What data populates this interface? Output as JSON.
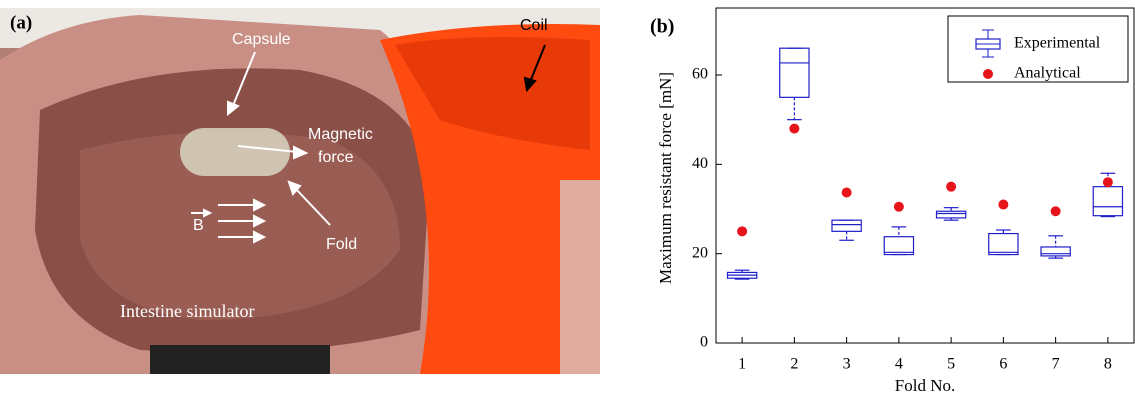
{
  "panel_a": {
    "label": "(a)",
    "capsule": "Capsule",
    "magnetic_force": [
      "Magnetic",
      "force"
    ],
    "coil": "Coil",
    "field": "B",
    "fold": "Fold",
    "simulator": "Intestine simulator"
  },
  "chart_data": {
    "type": "box",
    "panel_label": "(b)",
    "y_label": "Maximum resistant force [mN]",
    "x_label": "Fold No.",
    "categories": [
      "1",
      "2",
      "3",
      "4",
      "5",
      "6",
      "7",
      "8"
    ],
    "series": [
      {
        "name": "Experimental",
        "color": "#1f1fcc",
        "boxes": [
          {
            "min": 14.3,
            "q1": 14.5,
            "median": 15.2,
            "q3": 15.8,
            "max": 16.3
          },
          {
            "min": 50,
            "q1": 55,
            "median": 62.7,
            "q3": 66,
            "max": 66
          },
          {
            "min": 23,
            "q1": 25,
            "median": 26.5,
            "q3": 27.5,
            "max": 27.5
          },
          {
            "min": 19.8,
            "q1": 19.8,
            "median": 20.3,
            "q3": 23.8,
            "max": 26
          },
          {
            "min": 27.5,
            "q1": 28,
            "median": 29,
            "q3": 29.5,
            "max": 30.3
          },
          {
            "min": 19.8,
            "q1": 19.8,
            "median": 20.3,
            "q3": 24.5,
            "max": 25.3
          },
          {
            "min": 19,
            "q1": 19.5,
            "median": 20,
            "q3": 21.5,
            "max": 24
          },
          {
            "min": 28.3,
            "q1": 28.5,
            "median": 30.5,
            "q3": 35,
            "max": 38
          }
        ]
      },
      {
        "name": "Analytical",
        "color": "#e8141c",
        "values": [
          25,
          48,
          33.7,
          30.5,
          35,
          31,
          29.5,
          36
        ]
      }
    ],
    "ylim": [
      0,
      75
    ],
    "yticks": [
      0,
      20,
      40,
      60
    ],
    "legend": "upper right"
  }
}
